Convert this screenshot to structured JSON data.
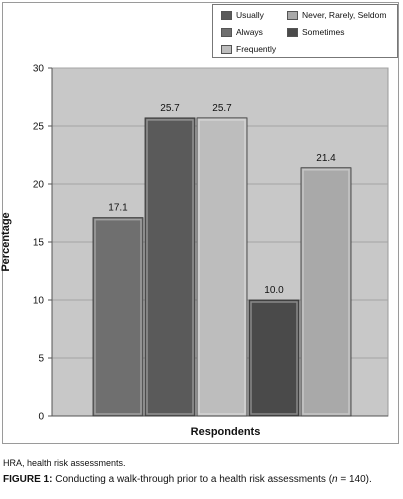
{
  "chart_data": {
    "type": "bar",
    "categories": [
      "Always",
      "Usually",
      "Frequently",
      "Sometimes",
      "Never, Rarely, Seldom"
    ],
    "values": [
      17.1,
      25.7,
      25.7,
      10.0,
      21.4
    ],
    "value_labels": [
      "17.1",
      "25.7",
      "25.7",
      "10.0",
      "21.4"
    ],
    "colors": [
      "#6f6f6f",
      "#5a5a5a",
      "#bdbdbd",
      "#4a4a4a",
      "#a9a9a9"
    ],
    "title": "",
    "xlabel": "Respondents",
    "ylabel": "Percentage",
    "ylim": [
      0,
      30
    ],
    "yticks": [
      "0",
      "5",
      "10",
      "15",
      "20",
      "25",
      "30"
    ],
    "plot_background": "#c8c8c8",
    "grid": true,
    "legend_position": "top-right",
    "legend": [
      {
        "label": "Usually",
        "color": "#5a5a5a"
      },
      {
        "label": "Never, Rarely, Seldom",
        "color": "#a9a9a9"
      },
      {
        "label": "Always",
        "color": "#6f6f6f"
      },
      {
        "label": "Sometimes",
        "color": "#4a4a4a"
      },
      {
        "label": "Frequently",
        "color": "#bdbdbd"
      }
    ]
  },
  "footnote": "HRA, health risk assessments.",
  "caption": {
    "label": "FIGURE 1:",
    "text_before": " Conducting a walk-through prior to a health risk assessments (",
    "n_var": "n",
    "text_after": " = 140)."
  }
}
